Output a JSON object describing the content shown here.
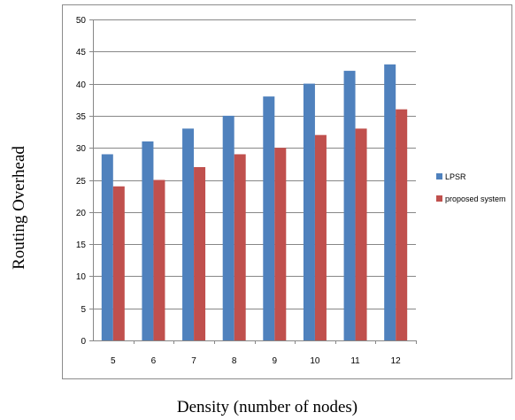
{
  "chart_data": {
    "type": "bar",
    "title": "",
    "xlabel": "Density (number of nodes)",
    "ylabel": "Routing Overhead",
    "categories": [
      "5",
      "6",
      "7",
      "8",
      "9",
      "10",
      "11",
      "12"
    ],
    "series": [
      {
        "name": "LPSR",
        "values": [
          29,
          31,
          33,
          35,
          38,
          40,
          42,
          43
        ],
        "color": "#4f81bd"
      },
      {
        "name": "proposed system",
        "values": [
          24,
          25,
          27,
          29,
          30,
          32,
          33,
          36
        ],
        "color": "#c0504d"
      }
    ],
    "ylim": [
      0,
      50
    ],
    "yticks": [
      0,
      5,
      10,
      15,
      20,
      25,
      30,
      35,
      40,
      45,
      50
    ],
    "grid": "horizontal",
    "legend": "right"
  }
}
